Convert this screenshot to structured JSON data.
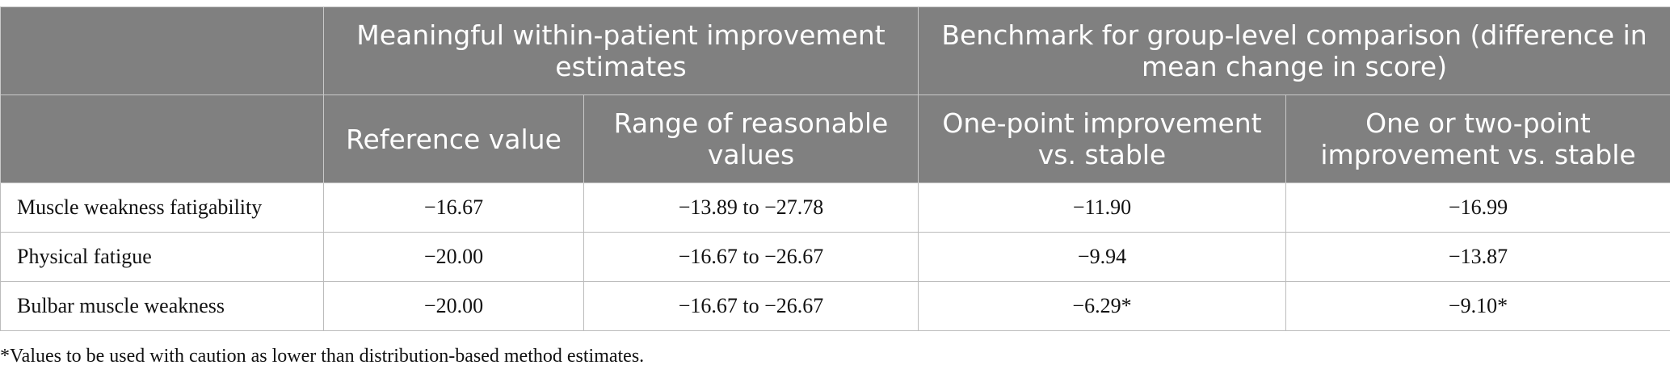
{
  "table": {
    "group_headers": [
      "",
      "Meaningful within-patient improvement estimates",
      "Benchmark for group-level comparison (difference in mean change in score)"
    ],
    "sub_headers": [
      "",
      "Reference value",
      "Range of reasonable values",
      "One-point improvement vs. stable",
      "One or two-point improvement vs. stable"
    ],
    "rows": [
      {
        "label": "Muscle weakness fatigability",
        "cells": [
          "−16.67",
          "−13.89 to −27.78",
          "−11.90",
          "−16.99"
        ]
      },
      {
        "label": "Physical fatigue",
        "cells": [
          "−20.00",
          "−16.67 to −26.67",
          "−9.94",
          "−13.87"
        ]
      },
      {
        "label": "Bulbar muscle weakness",
        "cells": [
          "−20.00",
          "−16.67 to −26.67",
          "−6.29*",
          "−9.10*"
        ]
      }
    ]
  },
  "footnote": "*Values to be used with caution as lower than distribution-based method estimates."
}
